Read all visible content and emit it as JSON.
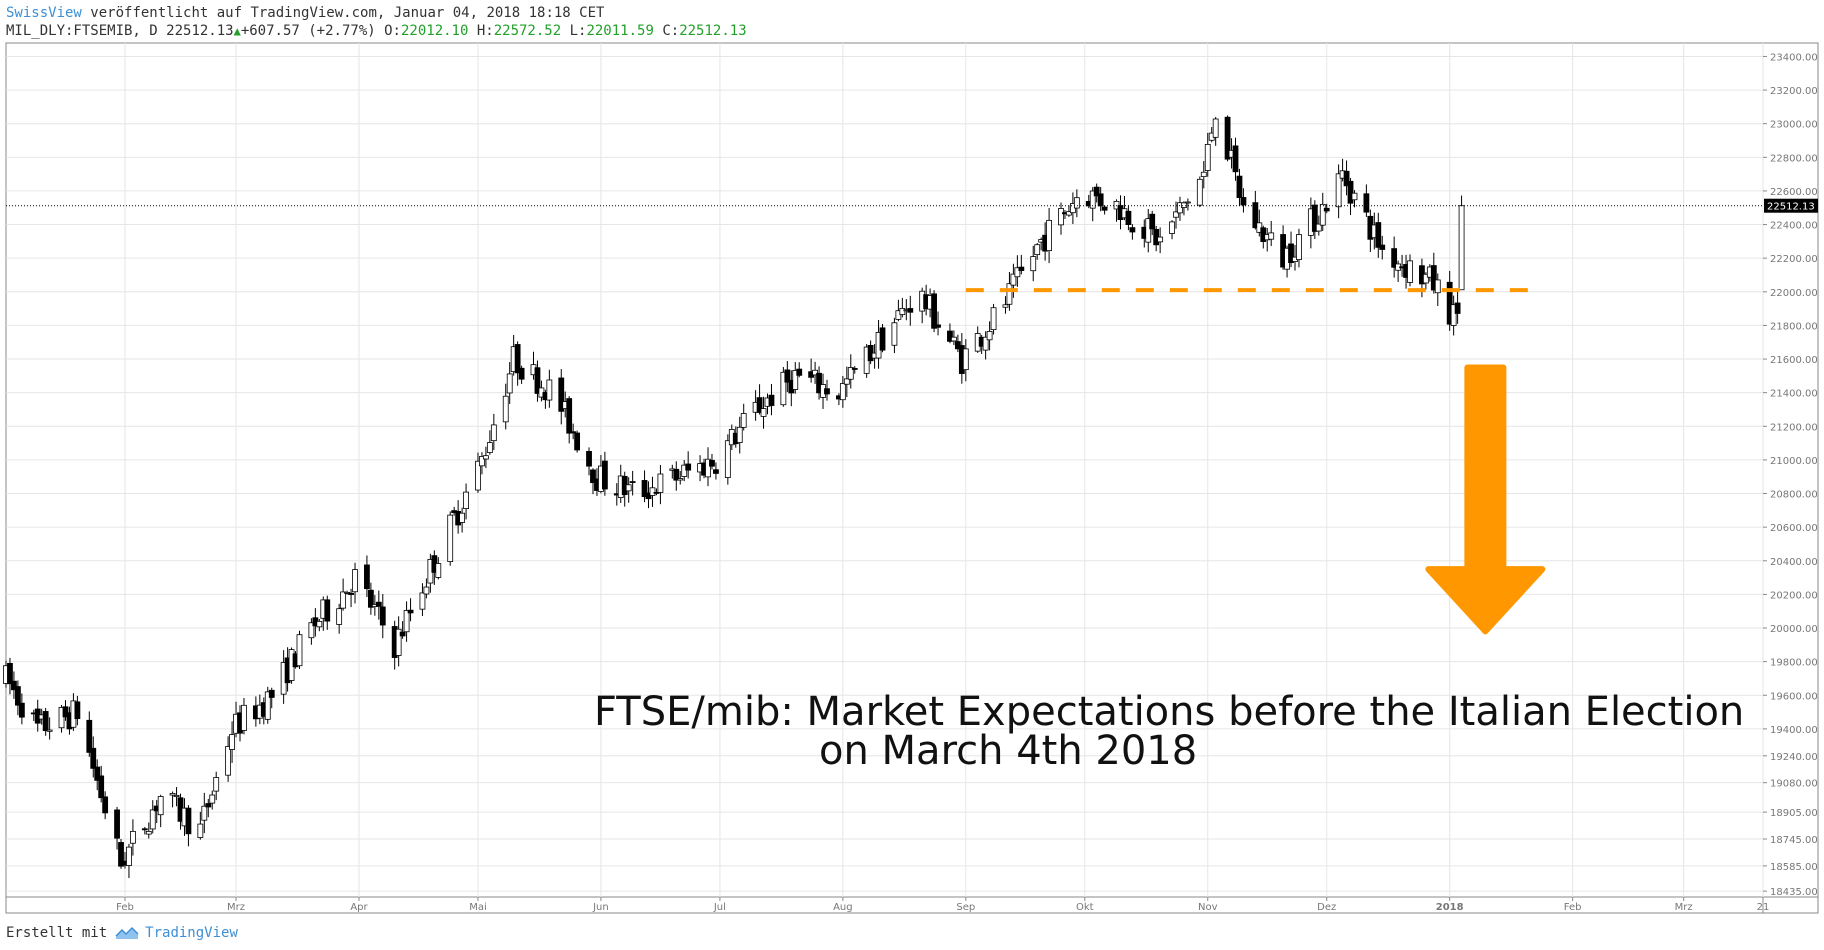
{
  "header": {
    "author": "SwissView",
    "published_text": "veröffentlicht auf TradingView.com, Januar 04, 2018 18:18 CET",
    "symbol": "MIL_DLY:FTSEMIB, D",
    "last": "22512.13",
    "change": "+607.57 (+2.77%)",
    "open_label": "O:",
    "open": "22012.10",
    "high_label": "H:",
    "high": "22572.52",
    "low_label": "L:",
    "low": "22011.59",
    "close_label": "C:",
    "close": "22512.13"
  },
  "footer": {
    "created_with": "Erstellt mit",
    "brand": "TradingView"
  },
  "colors": {
    "up": "#ffffff",
    "down": "#000000",
    "grid": "#e6e6e6",
    "accent": "#ff9800",
    "label_bg": "#000000"
  },
  "chart_data": {
    "type": "candlestick",
    "y_ticks": [
      "18435.00",
      "18585.00",
      "18745.00",
      "18905.00",
      "19080.00",
      "19240.00",
      "19400.00",
      "19600.00",
      "19800.00",
      "20000.00",
      "20200.00",
      "20400.00",
      "20600.00",
      "20800.00",
      "21000.00",
      "21200.00",
      "21400.00",
      "21600.00",
      "21800.00",
      "22000.00",
      "22200.00",
      "22400.00",
      "22600.00",
      "22800.00",
      "23000.00",
      "23200.00",
      "23400.00"
    ],
    "x_ticks": [
      "Feb",
      "Mrz",
      "Apr",
      "Mai",
      "Jun",
      "Jul",
      "Aug",
      "Sep",
      "Okt",
      "Nov",
      "Dez",
      "2018",
      "Feb",
      "Mrz",
      "21"
    ],
    "last_price_label": "22512.13",
    "last_price": 22512.13,
    "support_level": 22010,
    "annotation_line1": "FTSE/mib: Market Expectations before the Italian Election",
    "annotation_line2": "on March 4th 2018",
    "path_dates": [
      "2017-01-02",
      "2017-01-10",
      "2017-01-20",
      "2017-01-31",
      "2017-02-10",
      "2017-02-20",
      "2017-02-28",
      "2017-03-10",
      "2017-03-20",
      "2017-03-31",
      "2017-04-10",
      "2017-04-20",
      "2017-05-02",
      "2017-05-10",
      "2017-05-20",
      "2017-05-31",
      "2017-06-10",
      "2017-06-20",
      "2017-06-30",
      "2017-07-10",
      "2017-07-20",
      "2017-07-31",
      "2017-08-10",
      "2017-08-20",
      "2017-08-31",
      "2017-09-10",
      "2017-09-20",
      "2017-09-30",
      "2017-10-10",
      "2017-10-20",
      "2017-10-31",
      "2017-11-03",
      "2017-11-10",
      "2017-11-20",
      "2017-11-30",
      "2017-12-05",
      "2017-12-15",
      "2017-12-28",
      "2018-01-02",
      "2018-01-03",
      "2018-01-04"
    ],
    "path_closes": [
      19700,
      19400,
      19500,
      18600,
      19000,
      18800,
      19400,
      19600,
      20000,
      20300,
      19900,
      20400,
      21000,
      21600,
      21400,
      20900,
      20800,
      20900,
      21000,
      21300,
      21500,
      21400,
      21700,
      22000,
      21600,
      21900,
      22300,
      22600,
      22500,
      22300,
      22700,
      23100,
      22500,
      22200,
      22500,
      22700,
      22250,
      22050,
      21850,
      21900,
      22512.13
    ],
    "date_min": "2017-01-02",
    "date_max": "2018-03-21"
  }
}
